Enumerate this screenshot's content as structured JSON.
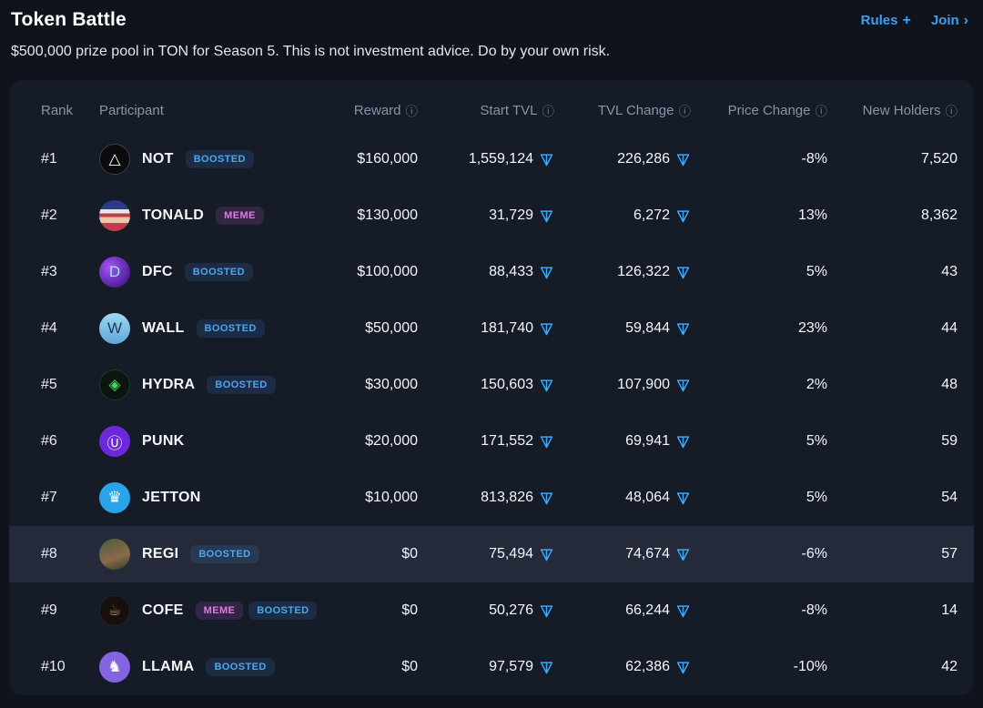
{
  "page": {
    "title": "Token Battle",
    "subtitle": "$500,000 prize pool in TON for Season 5. This is not investment advice. Do by your own risk.",
    "rules_label": "Rules",
    "rules_icon": "+",
    "join_label": "Join",
    "join_icon": "›"
  },
  "colors": {
    "background": "#0f131b",
    "card": "#161b28",
    "highlighted_row": "#242a3a",
    "accent_blue": "#3f9ef0",
    "ton_icon_blue": "#3da8f5",
    "badge_boost_text": "#4da6f0",
    "badge_meme_text": "#e07ae0",
    "header_text": "#8b93a7"
  },
  "table": {
    "info_icon": "ⓘ",
    "columns": [
      "Rank",
      "Participant",
      "Reward",
      "Start TVL",
      "TVL Change",
      "Price Change",
      "New Holders"
    ],
    "rows": [
      {
        "rank": "#1",
        "name": "NOT",
        "badges": [
          {
            "label": "BOOSTED",
            "type": "boost"
          }
        ],
        "reward": "$160,000",
        "start_tvl": "1,559,124",
        "tvl_change": "226,286",
        "price_change": "-8%",
        "new_holders": "7,520",
        "highlighted": false,
        "avatar": {
          "background": "#0b0b0e",
          "color": "#ffffff",
          "glyph": "△",
          "border": "1px solid #3a3f4a"
        }
      },
      {
        "rank": "#2",
        "name": "TONALD",
        "badges": [
          {
            "label": "MEME",
            "type": "meme"
          }
        ],
        "reward": "$130,000",
        "start_tvl": "31,729",
        "tvl_change": "6,272",
        "price_change": "13%",
        "new_holders": "8,362",
        "highlighted": false,
        "avatar": {
          "background": "linear-gradient(180deg,#2b3a8c 0%,#2b3a8c 30%,#e8e8e8 30%,#e8e8e8 42%,#c23b4a 42%,#c23b4a 55%,#e8c9a8 55%,#e8c9a8 74%,#c23b4a 74%,#c23b4a 100%)",
          "color": "#ffffff",
          "glyph": ""
        }
      },
      {
        "rank": "#3",
        "name": "DFC",
        "badges": [
          {
            "label": "BOOSTED",
            "type": "boost"
          }
        ],
        "reward": "$100,000",
        "start_tvl": "88,433",
        "tvl_change": "126,322",
        "price_change": "5%",
        "new_holders": "43",
        "highlighted": false,
        "avatar": {
          "background": "radial-gradient(circle at 35% 35%, #a855f7, #4c1d95 75%)",
          "color": "#8df0dc",
          "glyph": "D"
        }
      },
      {
        "rank": "#4",
        "name": "WALL",
        "badges": [
          {
            "label": "BOOSTED",
            "type": "boost"
          }
        ],
        "reward": "$50,000",
        "start_tvl": "181,740",
        "tvl_change": "59,844",
        "price_change": "23%",
        "new_holders": "44",
        "highlighted": false,
        "avatar": {
          "background": "linear-gradient(180deg,#9ed8f2,#5fa8d8)",
          "color": "#1d3a5f",
          "glyph": "W"
        }
      },
      {
        "rank": "#5",
        "name": "HYDRA",
        "badges": [
          {
            "label": "BOOSTED",
            "type": "boost"
          }
        ],
        "reward": "$30,000",
        "start_tvl": "150,603",
        "tvl_change": "107,900",
        "price_change": "2%",
        "new_holders": "48",
        "highlighted": false,
        "avatar": {
          "background": "#0a1510",
          "color": "#3fd95e",
          "glyph": "◈",
          "border": "1px solid #1d3a28"
        }
      },
      {
        "rank": "#6",
        "name": "PUNK",
        "badges": [],
        "reward": "$20,000",
        "start_tvl": "171,552",
        "tvl_change": "69,941",
        "price_change": "5%",
        "new_holders": "59",
        "highlighted": false,
        "avatar": {
          "background": "#6d28d9",
          "color": "#ffffff",
          "glyph": "Ⓤ"
        }
      },
      {
        "rank": "#7",
        "name": "JETTON",
        "badges": [],
        "reward": "$10,000",
        "start_tvl": "813,826",
        "tvl_change": "48,064",
        "price_change": "5%",
        "new_holders": "54",
        "highlighted": false,
        "avatar": {
          "background": "#2aa3e8",
          "color": "#ffffff",
          "glyph": "♛"
        }
      },
      {
        "rank": "#8",
        "name": "REGI",
        "badges": [
          {
            "label": "BOOSTED",
            "type": "boost"
          }
        ],
        "reward": "$0",
        "start_tvl": "75,494",
        "tvl_change": "74,674",
        "price_change": "-6%",
        "new_holders": "57",
        "highlighted": true,
        "avatar": {
          "background": "linear-gradient(160deg,#4a5d3a,#8a6a4a 60%,#2f3a2a)",
          "color": "#e8e0c8",
          "glyph": ""
        }
      },
      {
        "rank": "#9",
        "name": "COFE",
        "badges": [
          {
            "label": "MEME",
            "type": "meme"
          },
          {
            "label": "BOOSTED",
            "type": "boost"
          }
        ],
        "reward": "$0",
        "start_tvl": "50,276",
        "tvl_change": "66,244",
        "price_change": "-8%",
        "new_holders": "14",
        "highlighted": false,
        "avatar": {
          "background": "#15100d",
          "color": "#b07b50",
          "glyph": "☕",
          "border": "1px solid #2a221c"
        }
      },
      {
        "rank": "#10",
        "name": "LLAMA",
        "badges": [
          {
            "label": "BOOSTED",
            "type": "boost"
          }
        ],
        "reward": "$0",
        "start_tvl": "97,579",
        "tvl_change": "62,386",
        "price_change": "-10%",
        "new_holders": "42",
        "highlighted": false,
        "avatar": {
          "background": "#8464e0",
          "color": "#ffffff",
          "glyph": "♞"
        }
      }
    ]
  }
}
